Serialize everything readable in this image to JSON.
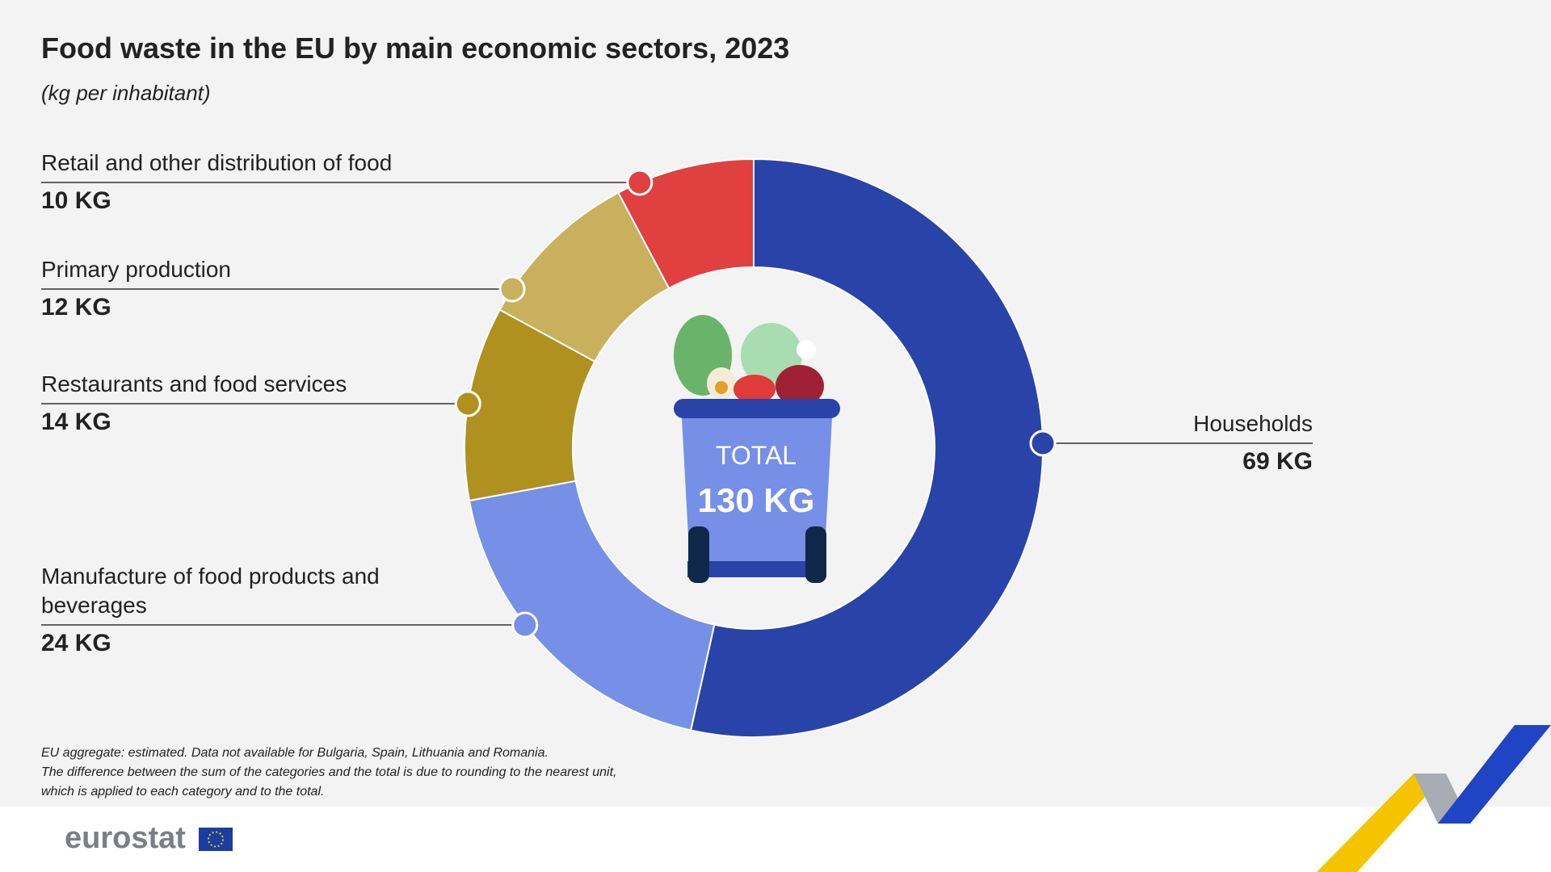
{
  "chart_data": {
    "type": "pie",
    "donut": true,
    "title": "Food waste in the EU by main economic sectors, 2023",
    "subtitle": "(kg per inhabitant)",
    "categories": [
      "Households",
      "Manufacture of food products and beverages",
      "Restaurants and food services",
      "Primary production",
      "Retail and other distribution of food"
    ],
    "values": [
      69,
      24,
      14,
      12,
      10
    ],
    "value_labels": [
      "69 KG",
      "24 KG",
      "14 KG",
      "12 KG",
      "10 KG"
    ],
    "colors": [
      "#2a43a8",
      "#7590e6",
      "#b0901f",
      "#c8b05c",
      "#e04040"
    ],
    "total": {
      "title": "TOTAL",
      "text": "130 KG"
    },
    "notes": [
      "EU aggregate: estimated. Data not available for Bulgaria, Spain, Lithuania and Romania.",
      "The difference between the sum of the categories and the total is due to rounding to the nearest unit,",
      "which is applied to each category and to the total."
    ],
    "source": "eurostat"
  }
}
